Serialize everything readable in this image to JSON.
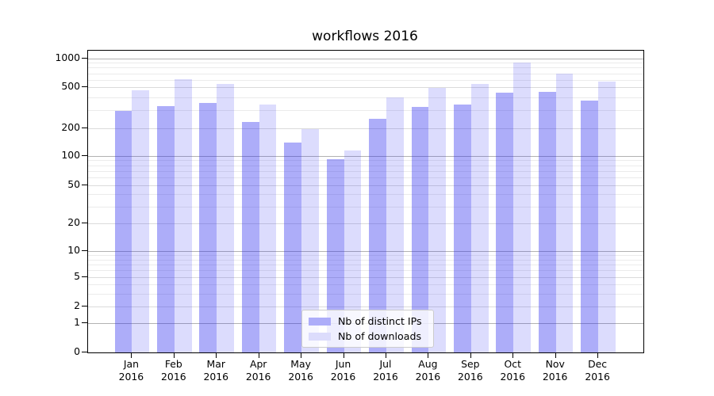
{
  "chart_data": {
    "type": "bar",
    "title": "workflows 2016",
    "categories": [
      "Jan",
      "Feb",
      "Mar",
      "Apr",
      "May",
      "Jun",
      "Jul",
      "Aug",
      "Sep",
      "Oct",
      "Nov",
      "Dec"
    ],
    "category_year": "2016",
    "series": [
      {
        "name": "Nb of distinct IPs",
        "color": "rgba(40,40,240,0.38)",
        "swatch": "#adadf9",
        "values": [
          295,
          330,
          355,
          230,
          140,
          92,
          245,
          320,
          340,
          440,
          455,
          370
        ]
      },
      {
        "name": "Nb of downloads",
        "color": "rgba(40,40,240,0.16)",
        "swatch": "#dcdcfc",
        "values": [
          470,
          605,
          545,
          340,
          195,
          115,
          400,
          490,
          545,
          900,
          690,
          570
        ]
      }
    ],
    "yscale": "symlog",
    "yticks": [
      0,
      1,
      2,
      5,
      10,
      20,
      50,
      100,
      200,
      500,
      1000
    ],
    "ylim": [
      0,
      1200
    ],
    "xlabel": "",
    "ylabel": "",
    "grid": true,
    "legend_position": "lower center"
  },
  "colors": {
    "grid_major": "#b2b2b2",
    "grid_mid": "#dbdbdb",
    "grid_minor": "#ebebeb",
    "axis": "#000000",
    "background": "#ffffff"
  }
}
